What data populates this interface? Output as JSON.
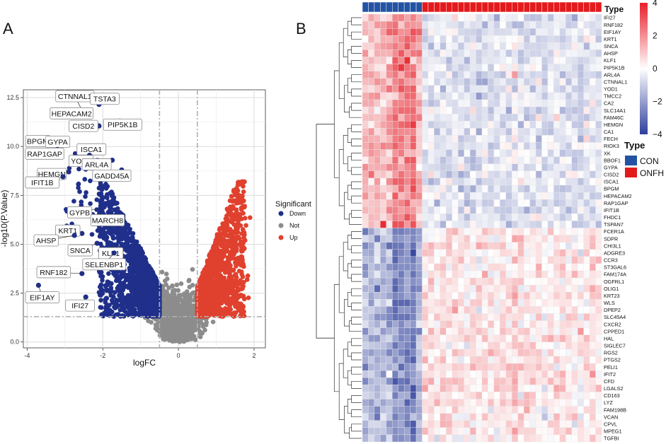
{
  "panels": {
    "a_label": "A",
    "b_label": "B"
  },
  "colors": {
    "down": "#1f2f8a",
    "not": "#8c8c8c",
    "up": "#e0412e",
    "con": "#2453a4",
    "onfh": "#e31a1c",
    "heat_high": "#e8202a",
    "heat_mid": "#ffffff",
    "heat_low": "#2e3f9c"
  },
  "chart_data": [
    {
      "type": "scatter",
      "title": "",
      "xlabel": "logFC",
      "ylabel": "-log10(P.Value)",
      "xlim": [
        -4.1,
        2.3
      ],
      "ylim": [
        -0.3,
        12.9
      ],
      "x_ticks": [
        -4,
        -2,
        0,
        2
      ],
      "y_ticks": [
        0.0,
        2.5,
        5.0,
        7.5,
        10.0,
        12.5
      ],
      "y_tick_labels": [
        "0.0",
        "2.5",
        "5.0",
        "7.5",
        "10.0",
        "12.5"
      ],
      "thresholds": {
        "logFC": [
          -0.5,
          0.5
        ],
        "neg_log10_p": 1.3
      },
      "legend": {
        "title": "Significant",
        "position": "right",
        "entries": [
          "Down",
          "Not",
          "Up"
        ]
      },
      "labeled_genes": [
        {
          "name": "CTNNAL1",
          "x": -2.55,
          "y": 11.85
        },
        {
          "name": "TSTA3",
          "x": -2.1,
          "y": 12.15
        },
        {
          "name": "HEPACAM2",
          "x": -2.45,
          "y": 11.55
        },
        {
          "name": "PIP5K1B",
          "x": -1.55,
          "y": 11.3
        },
        {
          "name": "CISD2",
          "x": -2.1,
          "y": 11.05
        },
        {
          "name": "BPGM",
          "x": -3.25,
          "y": 10.35
        },
        {
          "name": "GYPA",
          "x": -2.95,
          "y": 10.2
        },
        {
          "name": "ISCA1",
          "x": -2.0,
          "y": 10.0
        },
        {
          "name": "RAP1GAP",
          "x": -3.2,
          "y": 9.85
        },
        {
          "name": "YOD1",
          "x": -2.35,
          "y": 9.55
        },
        {
          "name": "ARL4A",
          "x": -1.75,
          "y": 9.3
        },
        {
          "name": "GADD45A",
          "x": -1.5,
          "y": 8.8
        },
        {
          "name": "HEMGN",
          "x": -2.9,
          "y": 8.7
        },
        {
          "name": "IFIT1B",
          "x": -3.05,
          "y": 8.45
        },
        {
          "name": "GYPB",
          "x": -2.05,
          "y": 6.85
        },
        {
          "name": "MARCH8",
          "x": -1.5,
          "y": 6.05
        },
        {
          "name": "KRT1",
          "x": -2.55,
          "y": 5.55
        },
        {
          "name": "AHSP",
          "x": -2.75,
          "y": 5.45
        },
        {
          "name": "SNCA",
          "x": -2.15,
          "y": 5.05
        },
        {
          "name": "KLF1",
          "x": -1.75,
          "y": 4.9
        },
        {
          "name": "SELENBP1",
          "x": -1.7,
          "y": 4.55
        },
        {
          "name": "RNF182",
          "x": -2.55,
          "y": 3.5
        },
        {
          "name": "EIF1AY",
          "x": -3.7,
          "y": 2.9
        },
        {
          "name": "IFI27",
          "x": -2.45,
          "y": 2.3
        }
      ]
    },
    {
      "type": "heatmap",
      "title": "",
      "annotation_title": "Type",
      "legend_title": "Type",
      "groups": [
        {
          "name": "CON",
          "count": 10
        },
        {
          "name": "ONFH",
          "count": 30
        }
      ],
      "color_scale": {
        "min": -4,
        "max": 4,
        "ticks": [
          4,
          2,
          0,
          -2,
          -4
        ],
        "tick_labels": [
          "4",
          "2",
          "0",
          "−2",
          "−4"
        ]
      },
      "rows": [
        "IFI27",
        "RNF182",
        "EIF1AY",
        "KRT1",
        "SNCA",
        "AHSP",
        "KLF1",
        "PIP5K1B",
        "ARL4A",
        "CTNNAL1",
        "YOD1",
        "TMCC2",
        "CA2",
        "SLC14A1",
        "FAM46C",
        "HEMGN",
        "CA1",
        "FECH",
        "RIOK3",
        "XK",
        "BBOF1",
        "GYPA",
        "CISD2",
        "ISCA1",
        "BPGM",
        "HEPACAM2",
        "RAP1GAP",
        "IFIT1B",
        "FHDC1",
        "TSPAN7",
        "FCER1A",
        "SDPR",
        "CHI3L1",
        "ADGRE3",
        "CCR3",
        "ST3GAL6",
        "FAM174A",
        "OGFRL1",
        "OLIG1",
        "KRT23",
        "WLS",
        "DPEP2",
        "SLC45A4",
        "CXCR2",
        "CPPED1",
        "HAL",
        "SIGLEC7",
        "RGS2",
        "PTGS2",
        "PELI1",
        "IFIT2",
        "CFD",
        "LGALS2",
        "CD163",
        "LYZ",
        "FAM198B",
        "VCAN",
        "CPVL",
        "MPEG1",
        "TGFBI"
      ],
      "up_rows_count": 30,
      "down_rows_count": 30,
      "pattern": "Top 30 genes high (red) in CON and low (blue) in ONFH; bottom 30 genes low in CON and high in ONFH"
    }
  ]
}
